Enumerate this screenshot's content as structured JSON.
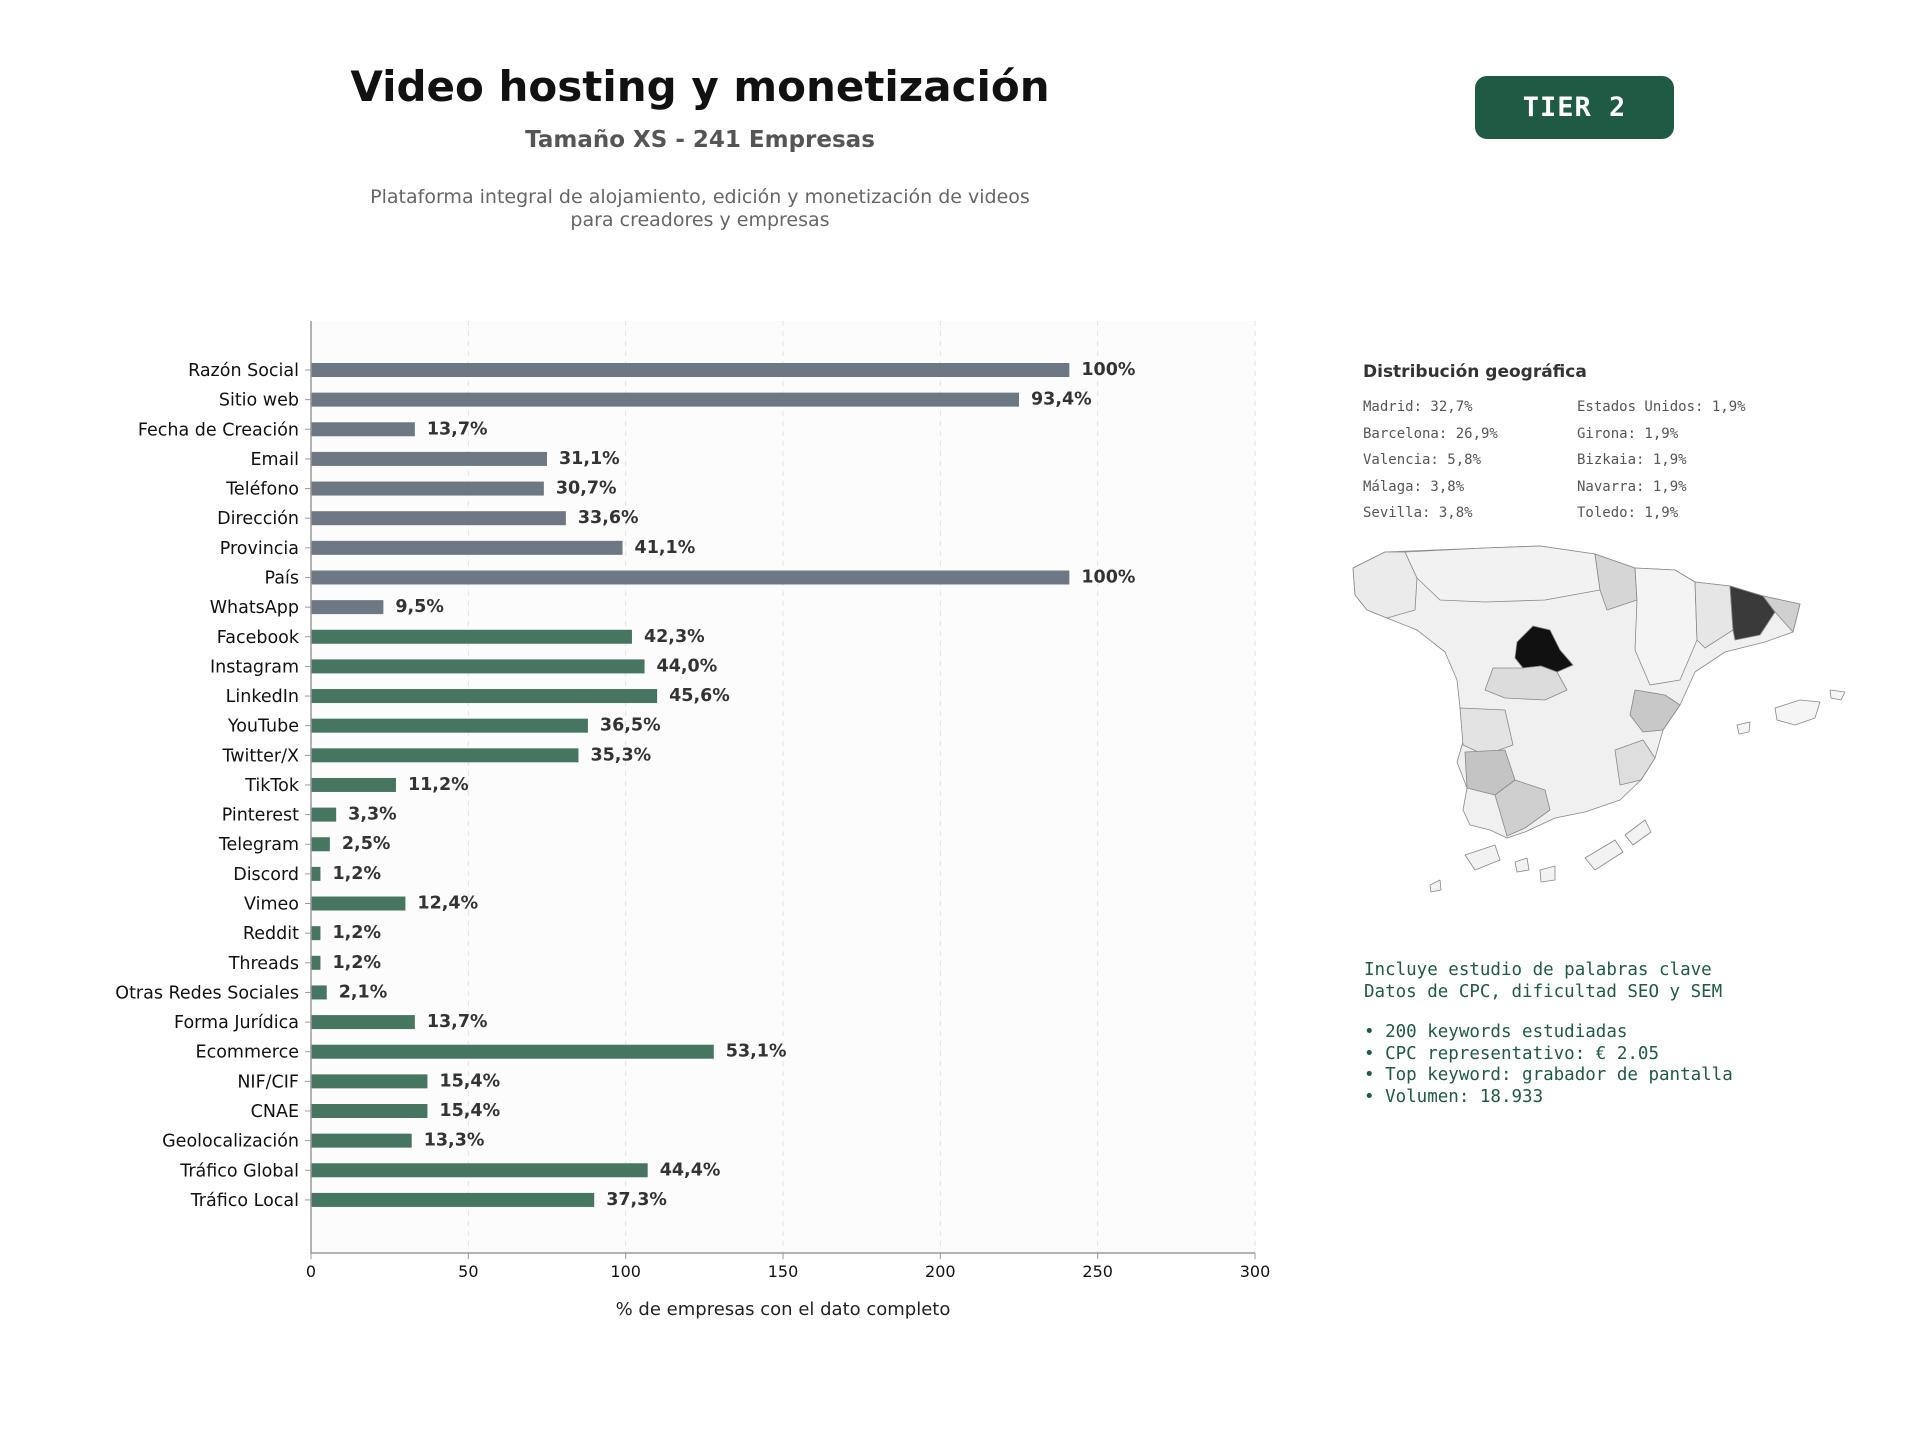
{
  "header": {
    "title": "Video hosting y monetización",
    "subtitle": "Tamaño XS - 241 Empresas",
    "description_lines": [
      "Plataforma integral de alojamiento, edición y monetización de videos",
      "para creadores y empresas"
    ],
    "tier_badge": "TIER 2"
  },
  "colors": {
    "gray_bar": "#6e7884",
    "green_bar": "#467562",
    "badge": "#1e5a44",
    "keyword_text": "#1e5a44"
  },
  "chart_data": {
    "type": "bar",
    "orientation": "horizontal",
    "xlabel": "% de empresas con el dato completo",
    "xlim": [
      0,
      300
    ],
    "xticks": [
      0,
      50,
      100,
      150,
      200,
      250,
      300
    ],
    "grid": "vertical dashed",
    "categories": [
      "Razón Social",
      "Sitio web",
      "Fecha de Creación",
      "Email",
      "Teléfono",
      "Dirección",
      "Provincia",
      "País",
      "WhatsApp",
      "Facebook",
      "Instagram",
      "LinkedIn",
      "YouTube",
      "Twitter/X",
      "TikTok",
      "Pinterest",
      "Telegram",
      "Discord",
      "Vimeo",
      "Reddit",
      "Threads",
      "Otras Redes Sociales",
      "Forma Jurídica",
      "Ecommerce",
      "NIF/CIF",
      "CNAE",
      "Geolocalización",
      "Tráfico Global",
      "Tráfico Local"
    ],
    "values": [
      241,
      225,
      33,
      75,
      74,
      81,
      99,
      241,
      23,
      102,
      106,
      110,
      88,
      85,
      27,
      8,
      6,
      3,
      30,
      3,
      3,
      5,
      33,
      128,
      37,
      37,
      32,
      107,
      90
    ],
    "labels": [
      "100%",
      "93,4%",
      "13,7%",
      "31,1%",
      "30,7%",
      "33,6%",
      "41,1%",
      "100%",
      "9,5%",
      "42,3%",
      "44,0%",
      "45,6%",
      "36,5%",
      "35,3%",
      "11,2%",
      "3,3%",
      "2,5%",
      "1,2%",
      "12,4%",
      "1,2%",
      "1,2%",
      "2,1%",
      "13,7%",
      "53,1%",
      "15,4%",
      "15,4%",
      "13,3%",
      "44,4%",
      "37,3%"
    ],
    "bar_color_groups": [
      "gray",
      "gray",
      "gray",
      "gray",
      "gray",
      "gray",
      "gray",
      "gray",
      "gray",
      "green",
      "green",
      "green",
      "green",
      "green",
      "green",
      "green",
      "green",
      "green",
      "green",
      "green",
      "green",
      "green",
      "green",
      "green",
      "green",
      "green",
      "green",
      "green",
      "green"
    ]
  },
  "geo": {
    "title": "Distribución geográfica",
    "col1": [
      "Madrid: 32,7%",
      "Barcelona: 26,9%",
      "Valencia: 5,8%",
      "Málaga: 3,8%",
      "Sevilla: 3,8%"
    ],
    "col2": [
      "Estados Unidos: 1,9%",
      "Girona: 1,9%",
      "Bizkaia: 1,9%",
      "Navarra: 1,9%",
      "Toledo: 1,9%"
    ]
  },
  "keywords": {
    "line1": "Incluye estudio de palabras clave",
    "line2": "Datos de CPC, dificultad SEO y SEM",
    "bullets": [
      "• 200 keywords estudiadas",
      "• CPC representativo: € 2.05",
      "• Top keyword: grabador de pantalla",
      "• Volumen: 18.933"
    ]
  }
}
